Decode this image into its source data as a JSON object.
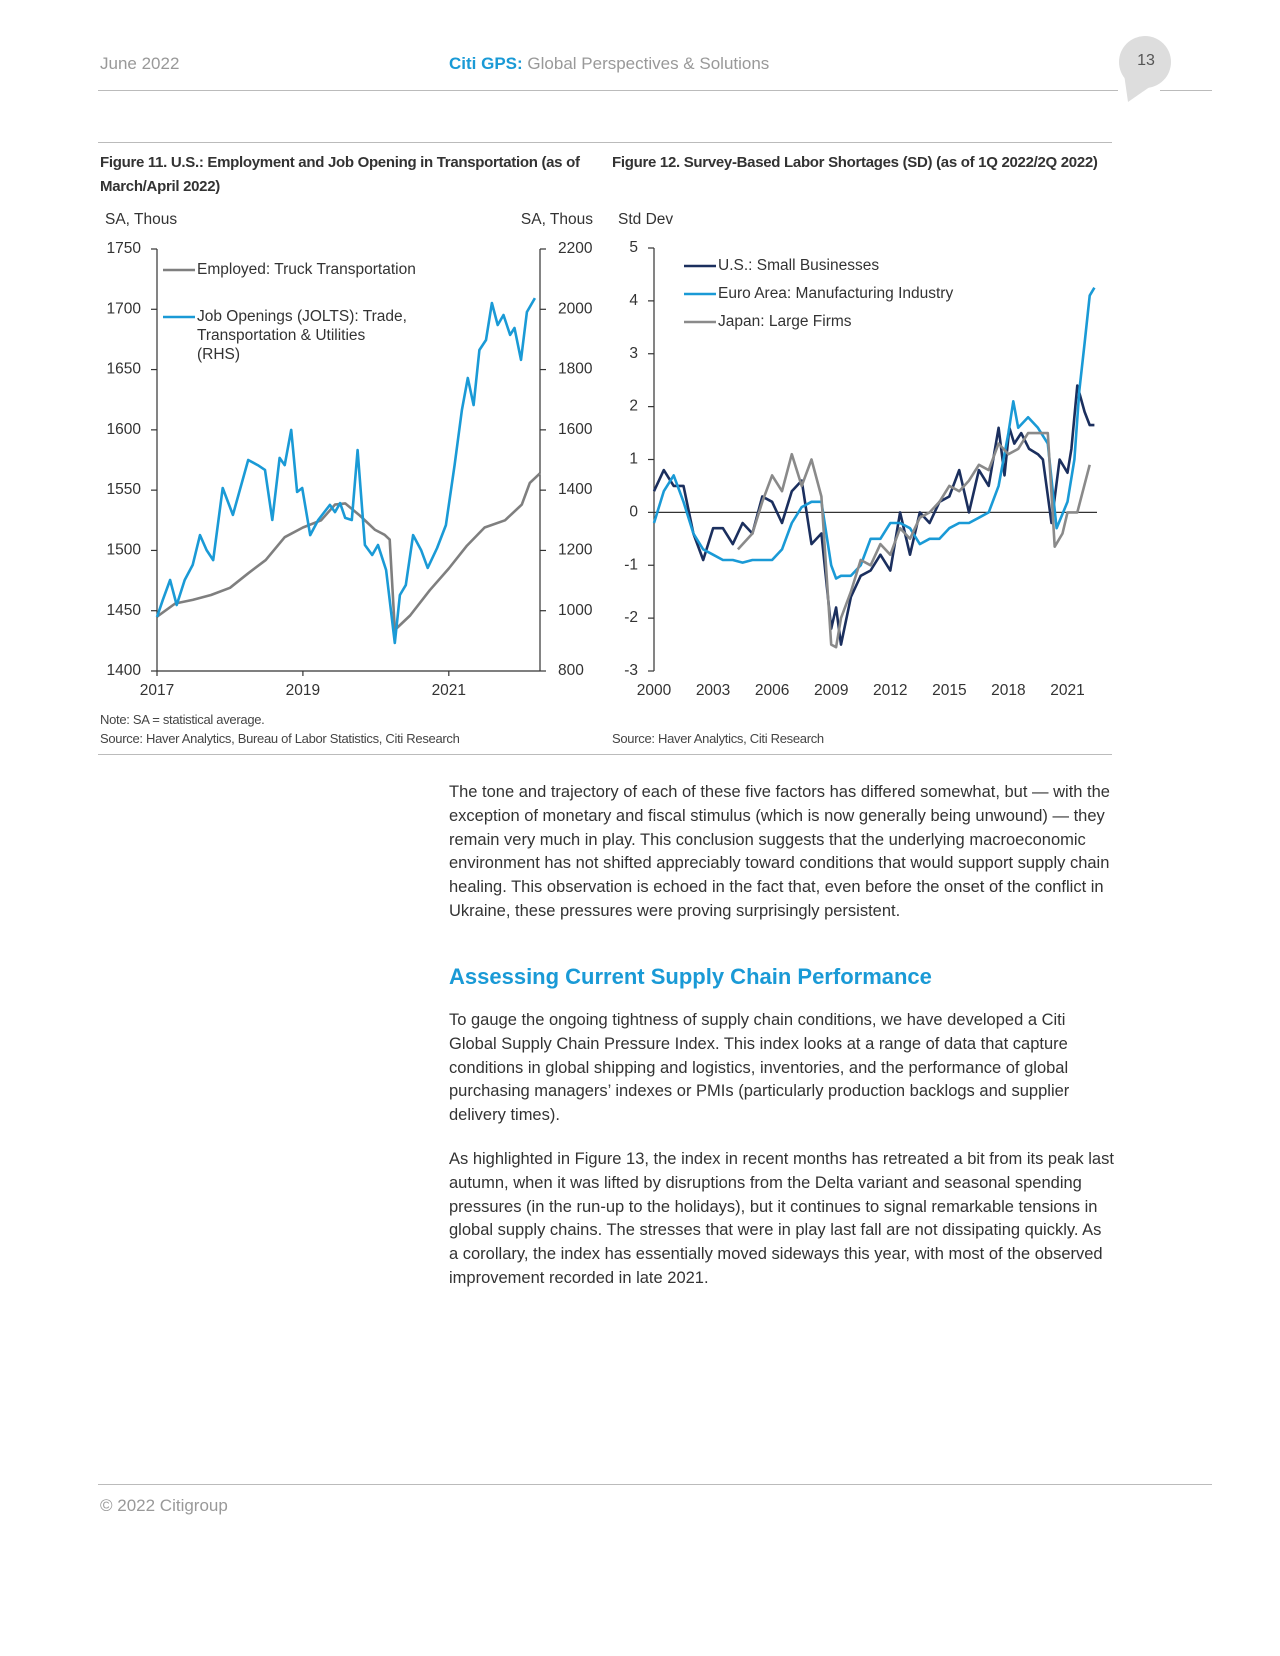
{
  "header": {
    "date": "June 2022",
    "brand": "Citi GPS:",
    "brand_subtitle": "Global Perspectives & Solutions",
    "page_number": "13"
  },
  "chart_data": [
    {
      "type": "line",
      "title": "Figure 11. U.S.: Employment and Job Opening in Transportation (as of March/April 2022)",
      "y_label": "SA, Thous",
      "y2_label": "SA, Thous",
      "note": "Note: SA = statistical average.",
      "source": "Source: Haver Analytics, Bureau of Labor Statistics, Citi Research",
      "xlim": [
        2017,
        2022.25
      ],
      "xticks": [
        2017,
        2019,
        2021
      ],
      "ylim": [
        1400,
        1750
      ],
      "yticks": [
        1400,
        1450,
        1500,
        1550,
        1600,
        1650,
        1700,
        1750
      ],
      "y2lim": [
        800,
        2200
      ],
      "y2ticks": [
        800,
        1000,
        1200,
        1400,
        1600,
        1800,
        2000,
        2200
      ],
      "grid": false,
      "legend": "upper left",
      "series": [
        {
          "name": "Employed: Truck Transportation",
          "color": "#7f7f7f",
          "x": [
            2017.0,
            2017.25,
            2017.49,
            2017.74,
            2018.0,
            2018.25,
            2018.49,
            2018.75,
            2019.0,
            2019.25,
            2019.44,
            2019.58,
            2019.78,
            2019.99,
            2020.12,
            2020.19,
            2020.26,
            2020.47,
            2020.74,
            2021.0,
            2021.25,
            2021.49,
            2021.77,
            2022.0,
            2022.11,
            2022.25
          ],
          "values": [
            1445,
            1456,
            1459,
            1463,
            1469,
            1481,
            1492,
            1511,
            1519,
            1525,
            1538,
            1539,
            1529,
            1517,
            1513,
            1509,
            1434,
            1446,
            1467,
            1485,
            1504,
            1519,
            1525,
            1538,
            1556,
            1564
          ]
        },
        {
          "name": "Job Openings (JOLTS): Trade, Transportation & Utilities (RHS)",
          "color": "#1a9ad6",
          "axis": "y2",
          "x": [
            2017.0,
            2017.08,
            2017.18,
            2017.27,
            2017.38,
            2017.49,
            2017.59,
            2017.68,
            2017.77,
            2017.9,
            2018.04,
            2018.25,
            2018.38,
            2018.48,
            2018.58,
            2018.68,
            2018.75,
            2018.84,
            2018.92,
            2018.99,
            2019.1,
            2019.21,
            2019.37,
            2019.44,
            2019.51,
            2019.58,
            2019.67,
            2019.75,
            2019.85,
            2019.95,
            2020.03,
            2020.14,
            2020.26,
            2020.33,
            2020.41,
            2020.51,
            2020.62,
            2020.71,
            2020.84,
            2020.96,
            2021.08,
            2021.18,
            2021.26,
            2021.34,
            2021.42,
            2021.51,
            2021.59,
            2021.67,
            2021.75,
            2021.84,
            2021.9,
            2021.99,
            2022.07,
            2022.18
          ],
          "values": [
            979,
            1036,
            1102,
            1019,
            1102,
            1152,
            1251,
            1201,
            1168,
            1407,
            1318,
            1500,
            1483,
            1467,
            1301,
            1507,
            1483,
            1600,
            1394,
            1407,
            1251,
            1301,
            1351,
            1327,
            1357,
            1308,
            1301,
            1533,
            1218,
            1185,
            1218,
            1135,
            893,
            1052,
            1085,
            1251,
            1201,
            1142,
            1208,
            1284,
            1483,
            1666,
            1772,
            1682,
            1865,
            1898,
            2021,
            1948,
            1981,
            1915,
            1938,
            1832,
            1991,
            2037
          ]
        }
      ]
    },
    {
      "type": "line",
      "title": "Figure 12. Survey-Based Labor Shortages (SD) (as of 1Q 2022/2Q 2022)",
      "y_label": "Std Dev",
      "source": "Source: Haver Analytics, Citi Research",
      "xlim": [
        2000,
        2022.5
      ],
      "xticks": [
        2000,
        2003,
        2006,
        2009,
        2012,
        2015,
        2018,
        2021
      ],
      "ylim": [
        -3,
        5
      ],
      "yticks": [
        -3,
        -2,
        -1,
        0,
        1,
        2,
        3,
        4,
        5
      ],
      "grid": false,
      "legend": "upper left",
      "series": [
        {
          "name": "U.S.: Small Businesses",
          "color": "#1b2f5e",
          "x": [
            2000,
            2000.5,
            2001,
            2001.5,
            2002,
            2002.5,
            2003,
            2003.5,
            2004,
            2004.5,
            2005,
            2005.5,
            2006,
            2006.5,
            2007,
            2007.5,
            2008,
            2008.5,
            2009,
            2009.25,
            2009.5,
            2010,
            2010.5,
            2011,
            2011.5,
            2012,
            2012.5,
            2013,
            2013.5,
            2014,
            2014.5,
            2015,
            2015.5,
            2016,
            2016.5,
            2017,
            2017.5,
            2017.8,
            2018.05,
            2018.3,
            2018.65,
            2019.05,
            2019.5,
            2019.75,
            2020.19,
            2020.6,
            2021,
            2021.2,
            2021.5,
            2021.87,
            2022.13,
            2022.37
          ],
          "values": [
            0.4,
            0.8,
            0.5,
            0.5,
            -0.4,
            -0.9,
            -0.3,
            -0.3,
            -0.6,
            -0.2,
            -0.4,
            0.3,
            0.2,
            -0.2,
            0.4,
            0.6,
            -0.6,
            -0.4,
            -2.2,
            -1.8,
            -2.5,
            -1.6,
            -1.2,
            -1.1,
            -0.8,
            -1.1,
            0.0,
            -0.8,
            0.0,
            -0.2,
            0.2,
            0.3,
            0.8,
            0.0,
            0.8,
            0.5,
            1.6,
            0.7,
            1.6,
            1.3,
            1.5,
            1.2,
            1.1,
            1.0,
            -0.2,
            1.0,
            0.75,
            1.2,
            2.4,
            1.9,
            1.65,
            1.65
          ]
        },
        {
          "name": "Euro Area: Manufacturing Industry",
          "color": "#1a9ad6",
          "x": [
            2000,
            2000.5,
            2001,
            2001.5,
            2002,
            2002.5,
            2003,
            2003.5,
            2004,
            2004.5,
            2005,
            2005.5,
            2006,
            2006.5,
            2007,
            2007.5,
            2008,
            2008.5,
            2009,
            2009.25,
            2009.5,
            2010,
            2010.5,
            2011,
            2011.5,
            2012,
            2012.5,
            2013,
            2013.5,
            2014,
            2014.5,
            2015,
            2015.5,
            2016,
            2016.5,
            2017,
            2017.5,
            2018,
            2018.25,
            2018.5,
            2019,
            2019.5,
            2020,
            2020.45,
            2021,
            2021.35,
            2021.6,
            2021.87,
            2022.13,
            2022.37
          ],
          "values": [
            -0.2,
            0.4,
            0.7,
            0.2,
            -0.4,
            -0.7,
            -0.8,
            -0.9,
            -0.9,
            -0.95,
            -0.9,
            -0.9,
            -0.9,
            -0.7,
            -0.2,
            0.1,
            0.2,
            0.2,
            -1.0,
            -1.25,
            -1.2,
            -1.2,
            -1.0,
            -0.5,
            -0.5,
            -0.2,
            -0.2,
            -0.3,
            -0.6,
            -0.5,
            -0.5,
            -0.3,
            -0.2,
            -0.2,
            -0.1,
            0.0,
            0.5,
            1.5,
            2.1,
            1.6,
            1.8,
            1.6,
            1.3,
            -0.3,
            0.2,
            1.0,
            2.3,
            3.2,
            4.1,
            4.25
          ]
        },
        {
          "name": "Japan: Large Firms",
          "color": "#8a8a8a",
          "x": [
            2004.26,
            2005,
            2005.5,
            2006,
            2006.5,
            2007,
            2007.5,
            2008,
            2008.5,
            2009,
            2009.25,
            2009.5,
            2010,
            2010.5,
            2011,
            2011.5,
            2012,
            2012.5,
            2013,
            2013.5,
            2014,
            2014.5,
            2015,
            2015.5,
            2016,
            2016.5,
            2017,
            2017.5,
            2018,
            2018.5,
            2019,
            2019.5,
            2020,
            2020.35,
            2020.75,
            2021,
            2021.5,
            2022.13
          ],
          "values": [
            -0.7,
            -0.4,
            0.2,
            0.7,
            0.4,
            1.1,
            0.5,
            1.0,
            0.3,
            -2.5,
            -2.55,
            -2.0,
            -1.5,
            -0.9,
            -1.0,
            -0.6,
            -0.8,
            -0.3,
            -0.5,
            -0.1,
            0.0,
            0.2,
            0.5,
            0.4,
            0.6,
            0.9,
            0.8,
            1.3,
            1.1,
            1.2,
            1.5,
            1.5,
            1.5,
            -0.65,
            -0.4,
            0.0,
            0.0,
            0.9
          ]
        }
      ]
    }
  ],
  "body": {
    "intro": "The tone and trajectory of each of these five factors has differed somewhat, but — with the exception of monetary and fiscal stimulus (which is now generally being unwound) — they remain very much in play. This conclusion suggests that the underlying macroeconomic environment has not shifted appreciably toward conditions that would support supply chain healing. This observation is echoed in the fact that, even before the onset of the conflict in Ukraine, these pressures were proving surprisingly persistent.",
    "heading": "Assessing Current Supply Chain Performance",
    "paragraphs": [
      "To gauge the ongoing tightness of supply chain conditions, we have developed a Citi Global Supply Chain Pressure Index. This index looks at a range of data that capture conditions in global shipping and logistics, inventories, and the performance of global purchasing managers’ indexes or PMIs (particularly production backlogs and supplier delivery times).",
      "As highlighted in Figure 13, the index in recent months has retreated a bit from its peak last autumn, when it was lifted by disruptions from the Delta variant and seasonal spending pressures (in the run-up to the holidays), but it continues to signal remarkable tensions in global supply chains. The stresses that were in play last fall are not dissipating quickly. As a corollary, the index has essentially moved sideways this year, with most of the observed improvement recorded in late 2021."
    ]
  },
  "footer": {
    "copyright": "© 2022 Citigroup"
  }
}
